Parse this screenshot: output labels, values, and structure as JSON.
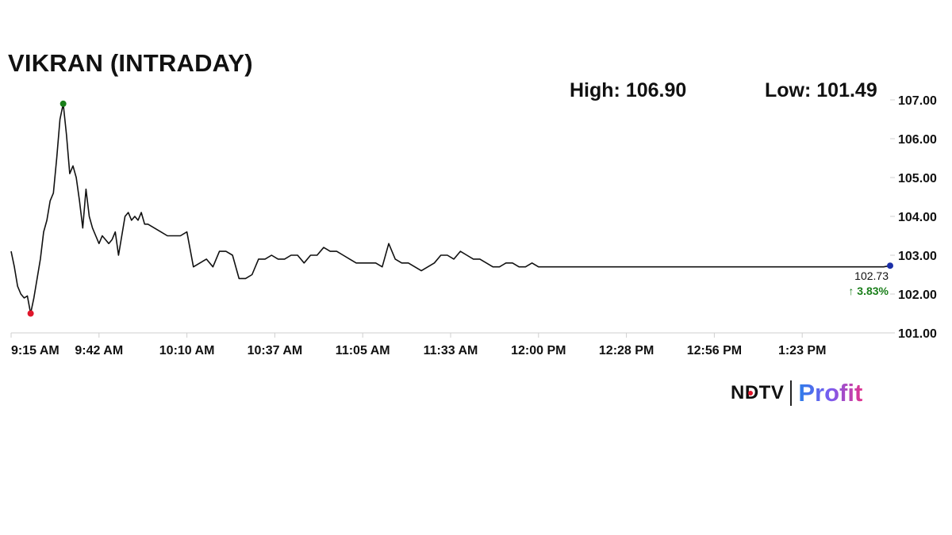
{
  "header": {
    "title": "VIKRAN (INTRADAY)",
    "high_label": "High: 106.90",
    "low_label": "Low: 101.49"
  },
  "brand": {
    "ndtv": "NDTV",
    "profit": "Profit"
  },
  "chart_data": {
    "type": "line",
    "title": "VIKRAN (INTRADAY)",
    "xlabel": "",
    "ylabel": "",
    "x_ticks": [
      "9:15 AM",
      "9:42 AM",
      "10:10 AM",
      "10:37 AM",
      "11:05 AM",
      "11:33 AM",
      "12:00 PM",
      "12:28 PM",
      "12:56 PM",
      "1:23 PM"
    ],
    "y_ticks": [
      "101.00",
      "102.00",
      "103.00",
      "104.00",
      "105.00",
      "106.00",
      "107.00"
    ],
    "ylim": [
      101.0,
      107.0
    ],
    "x_range_minutes": [
      0,
      270
    ],
    "grid": false,
    "line_color": "#111111",
    "series": [
      {
        "x": [
          0,
          1,
          2,
          3,
          4,
          5,
          6,
          7,
          8,
          9,
          10,
          11,
          12,
          13,
          14,
          15,
          16,
          17,
          18,
          19,
          20,
          21,
          22,
          23,
          24,
          25,
          26,
          27,
          28,
          29,
          30,
          31,
          32,
          33,
          34,
          35,
          36,
          37,
          38,
          39,
          40,
          41,
          42,
          44,
          46,
          48,
          50,
          52,
          54,
          56,
          58,
          60,
          62,
          64,
          66,
          68,
          70,
          72,
          74,
          76,
          78,
          80,
          82,
          84,
          86,
          88,
          90,
          92,
          94,
          96,
          98,
          100,
          102,
          104,
          106,
          108,
          110,
          112,
          114,
          116,
          118,
          120,
          122,
          124,
          126,
          128,
          130,
          132,
          134,
          136,
          138,
          140,
          142,
          144,
          146,
          148,
          150,
          152,
          154,
          156,
          158,
          160,
          162,
          164,
          166,
          168,
          170,
          172,
          174,
          176,
          178,
          180,
          182,
          184,
          186,
          188,
          190,
          192,
          194,
          196,
          198,
          200,
          202,
          204,
          206,
          208,
          210,
          212,
          214,
          216,
          218,
          220,
          222,
          224,
          226,
          228,
          230,
          232,
          234,
          236,
          238,
          240,
          242,
          244,
          246,
          248,
          250,
          252,
          254,
          256,
          258,
          260,
          262,
          264,
          266,
          268,
          270
        ],
        "y": [
          103.1,
          102.7,
          102.2,
          102.0,
          101.9,
          101.95,
          101.5,
          101.9,
          102.4,
          102.9,
          103.6,
          103.9,
          104.4,
          104.6,
          105.5,
          106.5,
          106.9,
          106.1,
          105.1,
          105.3,
          105.0,
          104.4,
          103.7,
          104.7,
          104.0,
          103.7,
          103.5,
          103.3,
          103.5,
          103.4,
          103.3,
          103.4,
          103.6,
          103.0,
          103.5,
          104.0,
          104.1,
          103.9,
          104.0,
          103.9,
          104.1,
          103.8,
          103.8,
          103.7,
          103.6,
          103.5,
          103.5,
          103.5,
          103.6,
          102.7,
          102.8,
          102.9,
          102.7,
          103.1,
          103.1,
          103.0,
          102.4,
          102.4,
          102.5,
          102.9,
          102.9,
          103.0,
          102.9,
          102.9,
          103.0,
          103.0,
          102.8,
          103.0,
          103.0,
          103.2,
          103.1,
          103.1,
          103.0,
          102.9,
          102.8,
          102.8,
          102.8,
          102.8,
          102.7,
          103.3,
          102.9,
          102.8,
          102.8,
          102.7,
          102.6,
          102.7,
          102.8,
          103.0,
          103.0,
          102.9,
          103.1,
          103.0,
          102.9,
          102.9,
          102.8,
          102.7,
          102.7,
          102.8,
          102.8,
          102.7,
          102.7,
          102.8,
          102.7,
          102.7,
          102.7,
          102.7,
          102.7,
          102.7,
          102.7,
          102.7,
          102.7,
          102.7,
          102.7,
          102.7,
          102.7,
          102.7,
          102.7,
          102.7,
          102.7,
          102.7,
          102.7,
          102.7,
          102.7,
          102.7,
          102.7,
          102.7,
          102.7,
          102.7,
          102.7,
          102.7,
          102.7,
          102.7,
          102.7,
          102.7,
          102.7,
          102.7,
          102.7,
          102.7,
          102.7,
          102.7,
          102.7,
          102.7,
          102.7,
          102.7,
          102.7,
          102.7,
          102.7,
          102.7,
          102.7,
          102.7,
          102.7,
          102.7,
          102.7,
          102.7,
          102.7,
          102.7,
          102.73
        ]
      }
    ],
    "markers": {
      "high": {
        "x": 16,
        "y": 106.9,
        "color": "#1a7f1a"
      },
      "low": {
        "x": 6,
        "y": 101.5,
        "color": "#e0162b"
      },
      "last": {
        "x": 270,
        "y": 102.73,
        "color": "#1b2fa8"
      }
    },
    "last_price_label": "102.73",
    "change_label": "↑ 3.83%",
    "change_color": "#1a7f1a"
  }
}
